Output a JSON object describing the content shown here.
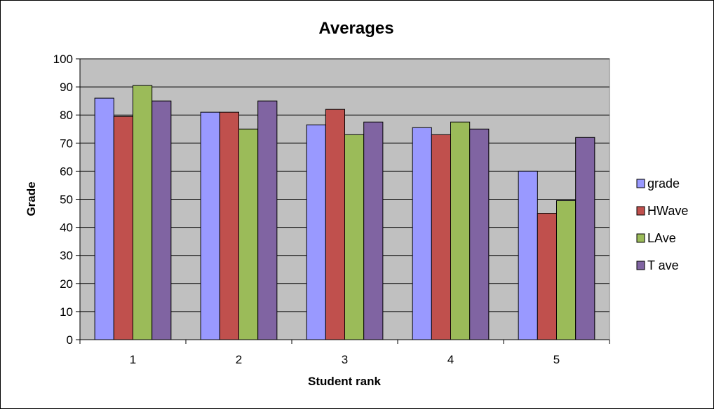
{
  "chart_data": {
    "type": "bar",
    "title": "Averages",
    "xlabel": "Student rank",
    "ylabel": "Grade",
    "categories": [
      "1",
      "2",
      "3",
      "4",
      "5"
    ],
    "ylim": [
      0,
      100
    ],
    "yticks": [
      0,
      10,
      20,
      30,
      40,
      50,
      60,
      70,
      80,
      90,
      100
    ],
    "grid": true,
    "legend_position": "right",
    "plot_background": "#C0C0C0",
    "series": [
      {
        "name": "grade",
        "color": "#9999FF",
        "values": [
          86,
          81,
          76.5,
          75.5,
          60
        ]
      },
      {
        "name": "HWave",
        "color": "#C0504D",
        "values": [
          79.5,
          81,
          82,
          73,
          45
        ]
      },
      {
        "name": "LAve",
        "color": "#9BBB59",
        "values": [
          90.5,
          75,
          73,
          77.5,
          49.5
        ]
      },
      {
        "name": "T ave",
        "color": "#8064A2",
        "values": [
          85,
          85,
          77.5,
          75,
          72
        ]
      }
    ]
  }
}
